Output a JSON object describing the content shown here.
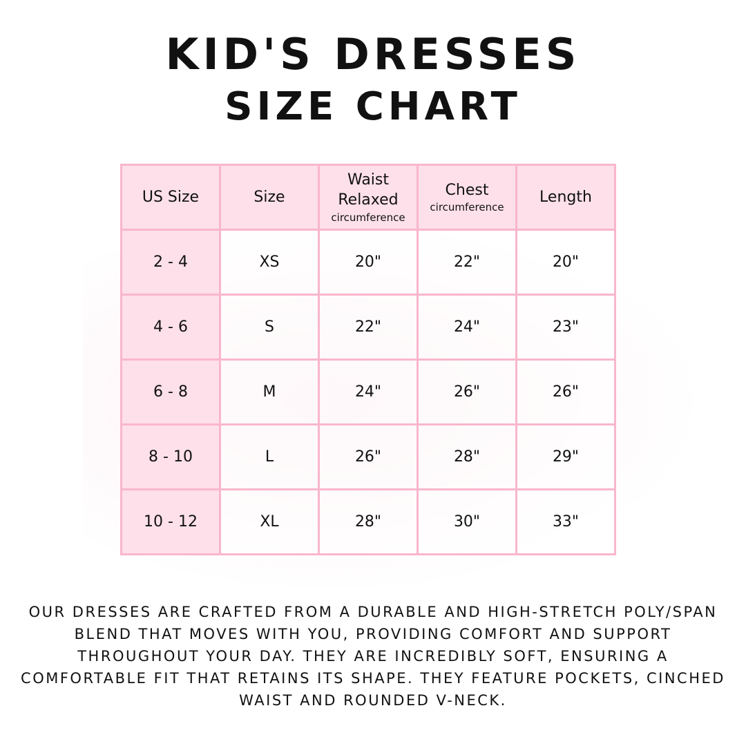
{
  "title": {
    "line1": "KID'S DRESSES",
    "line2": "SIZE CHART"
  },
  "table": {
    "headers": [
      {
        "main": "US Size",
        "sub": ""
      },
      {
        "main": "Size",
        "sub": ""
      },
      {
        "main": "Waist Relaxed",
        "sub": "circumference"
      },
      {
        "main": "Chest",
        "sub": "circumference"
      },
      {
        "main": "Length",
        "sub": ""
      }
    ],
    "rows": [
      [
        "2 - 4",
        "XS",
        "20\"",
        "22\"",
        "20\""
      ],
      [
        "4 - 6",
        "S",
        "22\"",
        "24\"",
        "23\""
      ],
      [
        "6 - 8",
        "M",
        "24\"",
        "26\"",
        "26\""
      ],
      [
        "8 - 10",
        "L",
        "26\"",
        "28\"",
        "29\""
      ],
      [
        "10 - 12",
        "XL",
        "28\"",
        "30\"",
        "33\""
      ]
    ]
  },
  "description": "Our dresses are crafted from a durable and high-stretch poly/span blend that moves with you, providing comfort and support throughout your day. They are incredibly soft, ensuring a comfortable fit that retains its shape. They feature pockets, cinched waist and rounded V-neck.",
  "colors": {
    "header_bg": "#fde0ea",
    "border": "#f9b6cc"
  }
}
